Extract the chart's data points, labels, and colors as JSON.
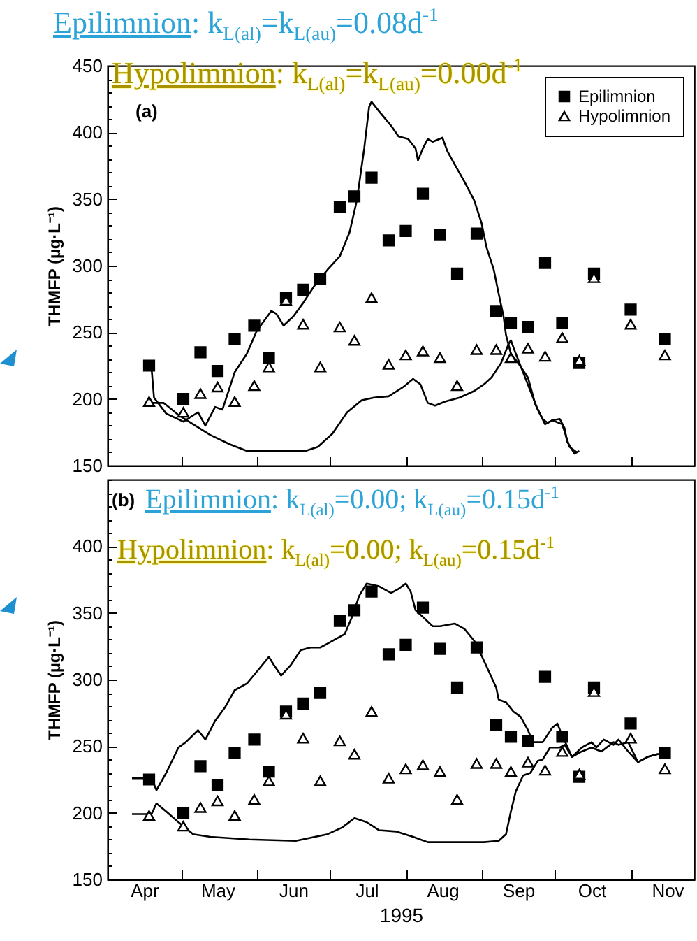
{
  "chart_data": [
    {
      "type": "scatter",
      "ylabel": "THMFP (µg·L⁻¹)",
      "legend": "top right",
      "tick_labels": "y",
      "xlim": [
        "1995-04-01",
        "1995-11-27"
      ],
      "ylim": [
        150,
        450
      ],
      "xticks": [
        {
          "value": "1995-05-01",
          "label": null
        },
        {
          "value": "1995-06-01",
          "label": null
        },
        {
          "value": "1995-07-01",
          "label": null
        },
        {
          "value": "1995-08-01",
          "label": null
        },
        {
          "value": "1995-09-01",
          "label": null
        },
        {
          "value": "1995-10-01",
          "label": null
        },
        {
          "value": "1995-11-01",
          "label": null
        }
      ],
      "yticks": [
        150,
        {
          "value": 160,
          "label": null
        },
        {
          "value": 170,
          "label": null
        },
        {
          "value": 180,
          "label": null
        },
        {
          "value": 190,
          "label": null
        },
        200,
        {
          "value": 210,
          "label": null
        },
        {
          "value": 220,
          "label": null
        },
        {
          "value": 230,
          "label": null
        },
        {
          "value": 240,
          "label": null
        },
        250,
        {
          "value": 260,
          "label": null
        },
        {
          "value": 270,
          "label": null
        },
        {
          "value": 280,
          "label": null
        },
        {
          "value": 290,
          "label": null
        },
        300,
        {
          "value": 310,
          "label": null
        },
        {
          "value": 320,
          "label": null
        },
        {
          "value": 330,
          "label": null
        },
        {
          "value": 340,
          "label": null
        },
        350,
        {
          "value": 360,
          "label": null
        },
        {
          "value": 370,
          "label": null
        },
        {
          "value": 380,
          "label": null
        },
        {
          "value": 390,
          "label": null
        },
        400,
        {
          "value": 410,
          "label": null
        },
        {
          "value": 420,
          "label": null
        },
        {
          "value": 430,
          "label": null
        },
        {
          "value": 440,
          "label": null
        },
        450
      ],
      "x": [
        "1995-04-18",
        "1995-05-02",
        "1995-05-09",
        "1995-05-16",
        "1995-05-23",
        "1995-05-31",
        "1995-06-06",
        "1995-06-13",
        "1995-06-20",
        "1995-06-27",
        "1995-07-05",
        "1995-07-11",
        "1995-07-18",
        "1995-07-25",
        "1995-08-01",
        "1995-08-08",
        "1995-08-15",
        "1995-08-22",
        "1995-08-30",
        "1995-09-07",
        "1995-09-13",
        "1995-09-20",
        "1995-09-27",
        "1995-10-04",
        "1995-10-11",
        "1995-10-17",
        "1995-11-01",
        "1995-11-15"
      ],
      "series": [
        {
          "name": "Epilimnion",
          "color": "#000000",
          "marker": "square",
          "values": [
            225,
            200,
            235,
            221,
            245,
            255,
            231,
            276,
            282,
            290,
            344,
            352,
            366,
            319,
            326,
            354,
            323,
            294,
            324,
            266,
            257,
            254,
            302,
            257,
            227,
            294,
            267,
            245
          ]
        },
        {
          "name": "Hypolimnion",
          "color": "#000000",
          "marker": "triangle",
          "values": [
            198,
            190,
            204,
            209,
            198,
            210,
            224,
            274,
            256,
            224,
            254,
            244,
            276,
            226,
            233,
            236,
            231,
            210,
            237,
            237,
            231,
            238,
            232,
            246,
            229,
            291,
            256,
            233
          ]
        },
        {
          "type": "line",
          "color": "#000000",
          "x": [
            "1995-04-19",
            "1995-04-20",
            "1995-04-25",
            "1995-05-02",
            "1995-05-08",
            "1995-05-11",
            "1995-05-15",
            "1995-05-18",
            "1995-05-23",
            "1995-05-28",
            "1995-06-01",
            "1995-06-07",
            "1995-06-09",
            "1995-06-12",
            "1995-06-16",
            "1995-06-20",
            "1995-06-25",
            "1995-06-30",
            "1995-07-05",
            "1995-07-09",
            "1995-07-12",
            "1995-07-15",
            "1995-07-17",
            "1995-07-18",
            "1995-07-21",
            "1995-07-26",
            "1995-07-29",
            "1995-08-02",
            "1995-08-05",
            "1995-08-06",
            "1995-08-08",
            "1995-08-10",
            "1995-08-12",
            "1995-08-16",
            "1995-08-18",
            "1995-08-21",
            "1995-08-25",
            "1995-08-29",
            "1995-09-01",
            "1995-09-03",
            "1995-09-06",
            "1995-09-08",
            "1995-09-10",
            "1995-09-11",
            "1995-09-13",
            "1995-09-16",
            "1995-09-20",
            "1995-09-23",
            "1995-09-26",
            "1995-09-28",
            "1995-09-30",
            "1995-10-03",
            "1995-10-05",
            "1995-10-06",
            "1995-10-09",
            "1995-10-11"
          ],
          "values": [
            223,
            201,
            189,
            183,
            190,
            180,
            194,
            192,
            220,
            234,
            251,
            266,
            264,
            255,
            262,
            272,
            286,
            297,
            307,
            325,
            349,
            388,
            419,
            423,
            416,
            405,
            397,
            395,
            388,
            379,
            388,
            395,
            393,
            396,
            386,
            376,
            363,
            349,
            332,
            314,
            297,
            279,
            262,
            248,
            234,
            227,
            216,
            196,
            185,
            182,
            184,
            185,
            178,
            168,
            159,
            161
          ]
        },
        {
          "type": "line",
          "color": "#000000",
          "x": [
            "1995-04-18",
            "1995-04-24",
            "1995-04-30",
            "1995-05-06",
            "1995-05-13",
            "1995-05-21",
            "1995-05-28",
            "1995-06-07",
            "1995-06-21",
            "1995-06-26",
            "1995-07-02",
            "1995-07-08",
            "1995-07-14",
            "1995-07-19",
            "1995-07-25",
            "1995-07-31",
            "1995-08-04",
            "1995-08-07",
            "1995-08-10",
            "1995-08-13",
            "1995-08-17",
            "1995-08-23",
            "1995-08-29",
            "1995-09-02",
            "1995-09-05",
            "1995-09-09",
            "1995-09-12",
            "1995-09-13",
            "1995-09-15",
            "1995-09-18",
            "1995-09-21",
            "1995-09-24",
            "1995-09-27",
            "1995-09-30",
            "1995-10-04",
            "1995-10-07",
            "1995-10-10"
          ],
          "values": [
            197,
            197,
            188,
            181,
            173,
            166,
            161,
            161,
            161,
            164,
            174,
            190,
            199,
            201,
            202,
            209,
            215,
            211,
            197,
            195,
            198,
            201,
            206,
            211,
            216,
            227,
            241,
            244,
            234,
            220,
            206,
            192,
            181,
            184,
            181,
            164,
            160
          ]
        }
      ],
      "annotations": [
        "(a)",
        "Epilimnion: k$_{L(al)}$=k$_{L(au)}$=0.08d$^{-1}$",
        "Hypolimnion: k$_{L(al)}$=k$_{L(au)}$=0.00d$^{-1}$"
      ]
    },
    {
      "type": "scatter",
      "ylabel": "THMFP (µg·L⁻¹)",
      "xlabel": "1995",
      "xlim": [
        "1995-04-01",
        "1995-11-27"
      ],
      "ylim": [
        150,
        450
      ],
      "xticks": [
        {
          "value": "1995-04-16",
          "label": "Apr"
        },
        {
          "value": "1995-05-01",
          "label": null
        },
        {
          "value": "1995-05-16",
          "label": "May"
        },
        {
          "value": "1995-06-01",
          "label": null
        },
        {
          "value": "1995-06-16",
          "label": "Jun"
        },
        {
          "value": "1995-07-01",
          "label": null
        },
        {
          "value": "1995-07-16",
          "label": "Jul"
        },
        {
          "value": "1995-08-01",
          "label": null
        },
        {
          "value": "1995-08-16",
          "label": "Aug"
        },
        {
          "value": "1995-09-01",
          "label": null
        },
        {
          "value": "1995-09-16",
          "label": "Sep"
        },
        {
          "value": "1995-10-01",
          "label": null
        },
        {
          "value": "1995-10-16",
          "label": "Oct"
        },
        {
          "value": "1995-11-01",
          "label": null
        },
        {
          "value": "1995-11-16",
          "label": "Nov"
        }
      ],
      "yticks": [
        150,
        {
          "value": 160,
          "label": null
        },
        {
          "value": 170,
          "label": null
        },
        {
          "value": 180,
          "label": null
        },
        {
          "value": 190,
          "label": null
        },
        200,
        {
          "value": 210,
          "label": null
        },
        {
          "value": 220,
          "label": null
        },
        {
          "value": 230,
          "label": null
        },
        {
          "value": 240,
          "label": null
        },
        250,
        {
          "value": 260,
          "label": null
        },
        {
          "value": 270,
          "label": null
        },
        {
          "value": 280,
          "label": null
        },
        {
          "value": 290,
          "label": null
        },
        300,
        {
          "value": 310,
          "label": null
        },
        {
          "value": 320,
          "label": null
        },
        {
          "value": 330,
          "label": null
        },
        {
          "value": 340,
          "label": null
        },
        350,
        {
          "value": 360,
          "label": null
        },
        {
          "value": 370,
          "label": null
        },
        {
          "value": 380,
          "label": null
        },
        {
          "value": 390,
          "label": null
        },
        400,
        {
          "value": 410,
          "label": null
        },
        {
          "value": 420,
          "label": null
        },
        {
          "value": 430,
          "label": null
        },
        {
          "value": 440,
          "label": null
        },
        {
          "value": 450,
          "label": null
        }
      ],
      "x": [
        "1995-04-18",
        "1995-05-02",
        "1995-05-09",
        "1995-05-16",
        "1995-05-23",
        "1995-05-31",
        "1995-06-06",
        "1995-06-13",
        "1995-06-20",
        "1995-06-27",
        "1995-07-05",
        "1995-07-11",
        "1995-07-18",
        "1995-07-25",
        "1995-08-01",
        "1995-08-08",
        "1995-08-15",
        "1995-08-22",
        "1995-08-30",
        "1995-09-07",
        "1995-09-13",
        "1995-09-20",
        "1995-09-27",
        "1995-10-04",
        "1995-10-11",
        "1995-10-17",
        "1995-11-01",
        "1995-11-15"
      ],
      "series": [
        {
          "color": "#000000",
          "marker": "square",
          "values": [
            225,
            200,
            235,
            221,
            245,
            255,
            231,
            276,
            282,
            290,
            344,
            352,
            366,
            319,
            326,
            354,
            323,
            294,
            324,
            266,
            257,
            254,
            302,
            257,
            227,
            294,
            267,
            245
          ]
        },
        {
          "color": "#000000",
          "marker": "triangle",
          "values": [
            198,
            190,
            204,
            209,
            198,
            210,
            224,
            274,
            256,
            224,
            254,
            244,
            276,
            226,
            233,
            236,
            231,
            210,
            237,
            237,
            231,
            238,
            232,
            246,
            229,
            291,
            256,
            233
          ]
        },
        {
          "type": "line",
          "color": "#000000",
          "x": [
            "1995-04-11",
            "1995-04-19",
            "1995-04-21",
            "1995-04-25",
            "1995-04-30",
            "1995-05-03",
            "1995-05-08",
            "1995-05-11",
            "1995-05-15",
            "1995-05-19",
            "1995-05-23",
            "1995-05-28",
            "1995-06-02",
            "1995-06-06",
            "1995-06-08",
            "1995-06-11",
            "1995-06-15",
            "1995-06-19",
            "1995-06-23",
            "1995-06-27",
            "1995-06-30",
            "1995-07-04",
            "1995-07-07",
            "1995-07-10",
            "1995-07-13",
            "1995-07-16",
            "1995-07-21",
            "1995-07-26",
            "1995-07-29",
            "1995-08-01",
            "1995-08-03",
            "1995-08-05",
            "1995-08-08",
            "1995-08-12",
            "1995-08-15",
            "1995-08-21",
            "1995-08-25",
            "1995-08-29",
            "1995-09-01",
            "1995-09-04",
            "1995-09-07",
            "1995-09-08",
            "1995-09-11",
            "1995-09-14",
            "1995-09-17",
            "1995-09-20",
            "1995-09-22",
            "1995-09-26",
            "1995-09-30",
            "1995-10-02",
            "1995-10-04",
            "1995-10-08",
            "1995-10-12",
            "1995-10-16",
            "1995-10-18",
            "1995-10-21",
            "1995-10-25",
            "1995-10-27",
            "1995-10-31",
            "1995-11-04",
            "1995-11-08",
            "1995-11-12",
            "1995-11-16"
          ],
          "values": [
            226,
            226,
            217,
            230,
            249,
            253,
            262,
            255,
            269,
            279,
            292,
            297,
            308,
            317,
            311,
            303,
            311,
            322,
            324,
            324,
            327,
            331,
            334,
            347,
            363,
            372,
            370,
            365,
            368,
            372,
            366,
            352,
            347,
            340,
            340,
            342,
            338,
            329,
            318,
            306,
            294,
            285,
            283,
            276,
            272,
            262,
            253,
            253,
            264,
            267,
            258,
            242,
            249,
            253,
            249,
            255,
            251,
            255,
            246,
            238,
            242,
            244,
            244
          ]
        },
        {
          "type": "line",
          "color": "#000000",
          "x": [
            "1995-04-11",
            "1995-04-19",
            "1995-04-21",
            "1995-04-25",
            "1995-04-30",
            "1995-05-06",
            "1995-05-13",
            "1995-05-29",
            "1995-06-17",
            "1995-06-30",
            "1995-07-06",
            "1995-07-11",
            "1995-07-16",
            "1995-07-21",
            "1995-07-28",
            "1995-08-04",
            "1995-08-10",
            "1995-08-21",
            "1995-09-02",
            "1995-09-08",
            "1995-09-11",
            "1995-09-13",
            "1995-09-15",
            "1995-09-18",
            "1995-09-21",
            "1995-09-24",
            "1995-09-26",
            "1995-09-29",
            "1995-10-03",
            "1995-10-05",
            "1995-10-08",
            "1995-10-12",
            "1995-10-16",
            "1995-10-20",
            "1995-10-25",
            "1995-10-27",
            "1995-10-31",
            "1995-11-04",
            "1995-11-08",
            "1995-11-12",
            "1995-11-16"
          ],
          "values": [
            199,
            199,
            207,
            201,
            193,
            184,
            182,
            180,
            179,
            184,
            189,
            196,
            193,
            187,
            186,
            182,
            178,
            178,
            178,
            179,
            184,
            201,
            216,
            228,
            230,
            239,
            240,
            249,
            249,
            251,
            242,
            246,
            249,
            246,
            253,
            251,
            253,
            238,
            242,
            244,
            244
          ]
        }
      ],
      "annotations": [
        "(b)",
        "Epilimnion: k$_{L(al)}$=0.00; k$_{L(au)}$=0.15d$^{-1}$",
        "Hypolimnion: k$_{L(al)}$=0.00; k$_{L(au)}$=0.15d$^{-1}$"
      ]
    }
  ]
}
